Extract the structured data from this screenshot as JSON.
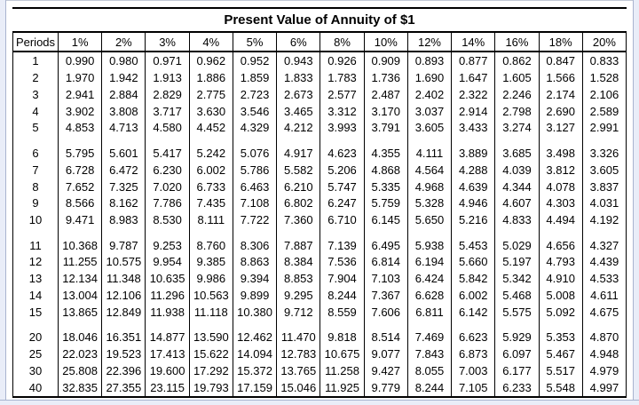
{
  "frame": {
    "background": "#ffffff",
    "edge_strip_color": "#e9edf8",
    "edge_line_color": "#a9b4cf",
    "table_line_color": "#000000"
  },
  "chart_data": {
    "type": "table",
    "title": "Present Value of Annuity of $1",
    "columns": [
      "Periods",
      "1%",
      "2%",
      "3%",
      "4%",
      "5%",
      "6%",
      "8%",
      "10%",
      "12%",
      "14%",
      "16%",
      "18%",
      "20%"
    ],
    "groups": [
      {
        "name": "periods-1-5",
        "rows": [
          [
            "1",
            "0.990",
            "0.980",
            "0.971",
            "0.962",
            "0.952",
            "0.943",
            "0.926",
            "0.909",
            "0.893",
            "0.877",
            "0.862",
            "0.847",
            "0.833"
          ],
          [
            "2",
            "1.970",
            "1.942",
            "1.913",
            "1.886",
            "1.859",
            "1.833",
            "1.783",
            "1.736",
            "1.690",
            "1.647",
            "1.605",
            "1.566",
            "1.528"
          ],
          [
            "3",
            "2.941",
            "2.884",
            "2.829",
            "2.775",
            "2.723",
            "2.673",
            "2.577",
            "2.487",
            "2.402",
            "2.322",
            "2.246",
            "2.174",
            "2.106"
          ],
          [
            "4",
            "3.902",
            "3.808",
            "3.717",
            "3.630",
            "3.546",
            "3.465",
            "3.312",
            "3.170",
            "3.037",
            "2.914",
            "2.798",
            "2.690",
            "2.589"
          ],
          [
            "5",
            "4.853",
            "4.713",
            "4.580",
            "4.452",
            "4.329",
            "4.212",
            "3.993",
            "3.791",
            "3.605",
            "3.433",
            "3.274",
            "3.127",
            "2.991"
          ]
        ]
      },
      {
        "name": "periods-6-10",
        "rows": [
          [
            "6",
            "5.795",
            "5.601",
            "5.417",
            "5.242",
            "5.076",
            "4.917",
            "4.623",
            "4.355",
            "4.111",
            "3.889",
            "3.685",
            "3.498",
            "3.326"
          ],
          [
            "7",
            "6.728",
            "6.472",
            "6.230",
            "6.002",
            "5.786",
            "5.582",
            "5.206",
            "4.868",
            "4.564",
            "4.288",
            "4.039",
            "3.812",
            "3.605"
          ],
          [
            "8",
            "7.652",
            "7.325",
            "7.020",
            "6.733",
            "6.463",
            "6.210",
            "5.747",
            "5.335",
            "4.968",
            "4.639",
            "4.344",
            "4.078",
            "3.837"
          ],
          [
            "9",
            "8.566",
            "8.162",
            "7.786",
            "7.435",
            "7.108",
            "6.802",
            "6.247",
            "5.759",
            "5.328",
            "4.946",
            "4.607",
            "4.303",
            "4.031"
          ],
          [
            "10",
            "9.471",
            "8.983",
            "8.530",
            "8.111",
            "7.722",
            "7.360",
            "6.710",
            "6.145",
            "5.650",
            "5.216",
            "4.833",
            "4.494",
            "4.192"
          ]
        ]
      },
      {
        "name": "periods-11-15",
        "rows": [
          [
            "11",
            "10.368",
            "9.787",
            "9.253",
            "8.760",
            "8.306",
            "7.887",
            "7.139",
            "6.495",
            "5.938",
            "5.453",
            "5.029",
            "4.656",
            "4.327"
          ],
          [
            "12",
            "11.255",
            "10.575",
            "9.954",
            "9.385",
            "8.863",
            "8.384",
            "7.536",
            "6.814",
            "6.194",
            "5.660",
            "5.197",
            "4.793",
            "4.439"
          ],
          [
            "13",
            "12.134",
            "11.348",
            "10.635",
            "9.986",
            "9.394",
            "8.853",
            "7.904",
            "7.103",
            "6.424",
            "5.842",
            "5.342",
            "4.910",
            "4.533"
          ],
          [
            "14",
            "13.004",
            "12.106",
            "11.296",
            "10.563",
            "9.899",
            "9.295",
            "8.244",
            "7.367",
            "6.628",
            "6.002",
            "5.468",
            "5.008",
            "4.611"
          ],
          [
            "15",
            "13.865",
            "12.849",
            "11.938",
            "11.118",
            "10.380",
            "9.712",
            "8.559",
            "7.606",
            "6.811",
            "6.142",
            "5.575",
            "5.092",
            "4.675"
          ]
        ]
      },
      {
        "name": "periods-20-40",
        "rows": [
          [
            "20",
            "18.046",
            "16.351",
            "14.877",
            "13.590",
            "12.462",
            "11.470",
            "9.818",
            "8.514",
            "7.469",
            "6.623",
            "5.929",
            "5.353",
            "4.870"
          ],
          [
            "25",
            "22.023",
            "19.523",
            "17.413",
            "15.622",
            "14.094",
            "12.783",
            "10.675",
            "9.077",
            "7.843",
            "6.873",
            "6.097",
            "5.467",
            "4.948"
          ],
          [
            "30",
            "25.808",
            "22.396",
            "19.600",
            "17.292",
            "15.372",
            "13.765",
            "11.258",
            "9.427",
            "8.055",
            "7.003",
            "6.177",
            "5.517",
            "4.979"
          ],
          [
            "40",
            "32.835",
            "27.355",
            "23.115",
            "19.793",
            "17.159",
            "15.046",
            "11.925",
            "9.779",
            "8.244",
            "7.105",
            "6.233",
            "5.548",
            "4.997"
          ]
        ]
      }
    ]
  }
}
